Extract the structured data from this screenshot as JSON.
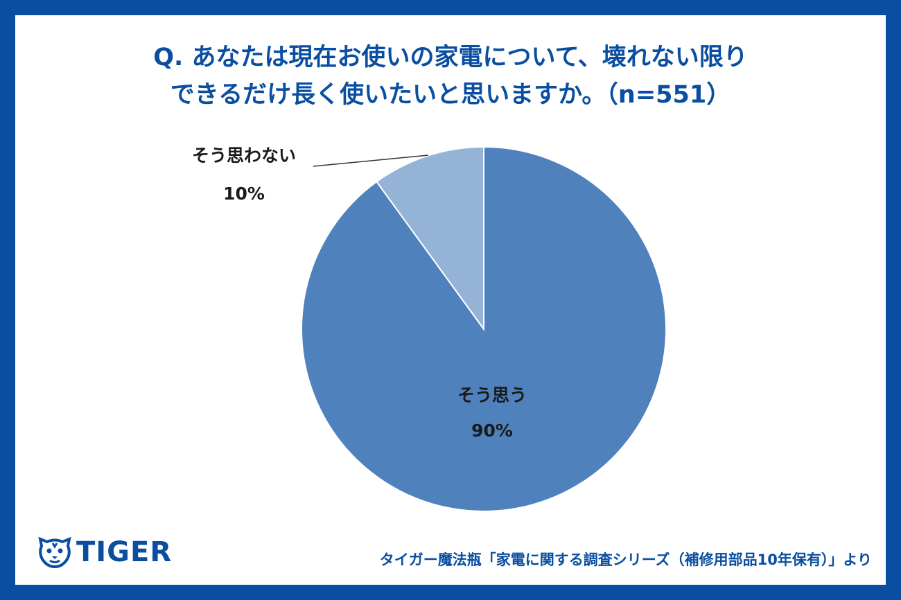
{
  "title_lines": [
    "Q. あなたは現在お使いの家電について、壊れない限り",
    "できるだけ長く使いたいと思いますか。（n=551）"
  ],
  "logo_text": "TIGER",
  "logo_icon": "tiger-face-icon",
  "source": "タイガー魔法瓶「家電に関する調査シリーズ（補修用部品10年保有）」より",
  "colors": {
    "frame": "#0a4ea1",
    "slice_main": "#4f81bd",
    "slice_minor": "#95b3d7"
  },
  "chart_data": {
    "type": "pie",
    "slices": [
      {
        "label": "そう思う",
        "value": 90,
        "value_label": "90%"
      },
      {
        "label": "そう思わない",
        "value": 10,
        "value_label": "10%"
      }
    ]
  }
}
